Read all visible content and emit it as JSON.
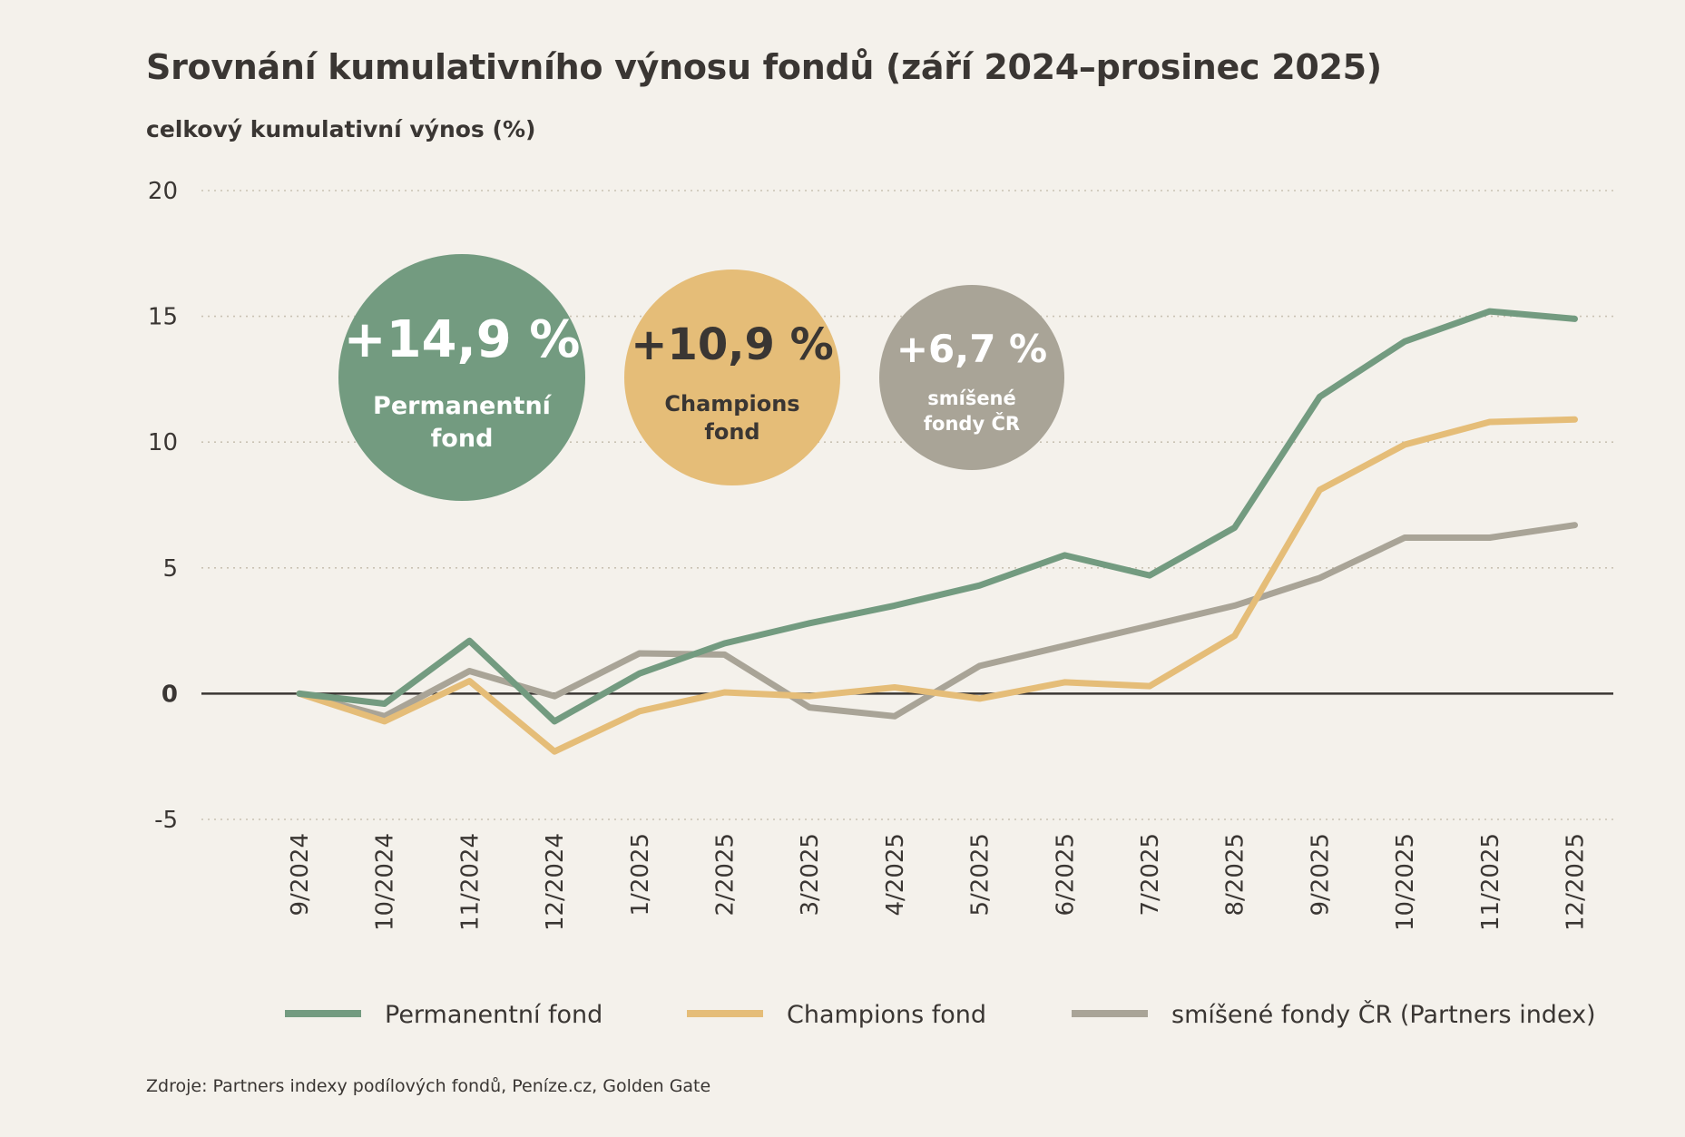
{
  "header": {
    "title": "Srovnání kumulativního výnosu fondů (září 2024–prosinec 2025)",
    "subtitle": "celkový kumulativní výnos (%)"
  },
  "bubbles": [
    {
      "value": "+14,9 %",
      "label_line1": "Permanentní",
      "label_line2": "fond",
      "color": "#739b80",
      "text_color": "#ffffff"
    },
    {
      "value": "+10,9 %",
      "label_line1": "Champions",
      "label_line2": "fond",
      "color": "#e5bd78",
      "text_color": "#3a3633"
    },
    {
      "value": "+6,7 %",
      "label_line1": "smíšené",
      "label_line2": "fondy ČR",
      "color": "#a9a497",
      "text_color": "#ffffff"
    }
  ],
  "legend": [
    {
      "label": "Permanentní fond",
      "color": "#739b80"
    },
    {
      "label": "Champions fond",
      "color": "#e5bd78"
    },
    {
      "label": "smíšené fondy ČR (Partners index)",
      "color": "#a9a497"
    }
  ],
  "source": "Zdroje: Partners indexy podílových fondů, Peníze.cz, Golden Gate",
  "chart_data": {
    "type": "line",
    "title": "Srovnání kumulativního výnosu fondů (září 2024–prosinec 2025)",
    "ylabel": "celkový kumulativní výnos (%)",
    "xlabel": "",
    "categories": [
      "9/2024",
      "10/2024",
      "11/2024",
      "12/2024",
      "1/2025",
      "2/2025",
      "3/2025",
      "4/2025",
      "5/2025",
      "6/2025",
      "7/2025",
      "8/2025",
      "9/2025",
      "10/2025",
      "11/2025",
      "12/2025"
    ],
    "ylim": [
      -5,
      20
    ],
    "yticks": [
      20,
      15,
      10,
      5,
      0,
      -5
    ],
    "grid": true,
    "legend_position": "bottom",
    "series": [
      {
        "name": "Permanentní fond",
        "color": "#739b80",
        "values": [
          0,
          -0.4,
          2.1,
          -1.1,
          0.8,
          2.0,
          2.8,
          3.5,
          4.3,
          5.5,
          4.7,
          6.6,
          11.8,
          14.0,
          15.2,
          14.9
        ]
      },
      {
        "name": "Champions fond",
        "color": "#e5bd78",
        "values": [
          0,
          -1.1,
          0.5,
          -2.3,
          -0.7,
          0.05,
          -0.1,
          0.25,
          -0.2,
          0.45,
          0.3,
          2.3,
          8.1,
          9.9,
          10.8,
          10.9
        ]
      },
      {
        "name": "smíšené fondy ČR (Partners index)",
        "color": "#a9a497",
        "values": [
          0,
          -0.9,
          0.9,
          -0.1,
          1.6,
          1.55,
          -0.55,
          -0.9,
          1.1,
          1.9,
          2.7,
          3.5,
          4.6,
          6.2,
          6.2,
          6.7
        ]
      }
    ]
  }
}
